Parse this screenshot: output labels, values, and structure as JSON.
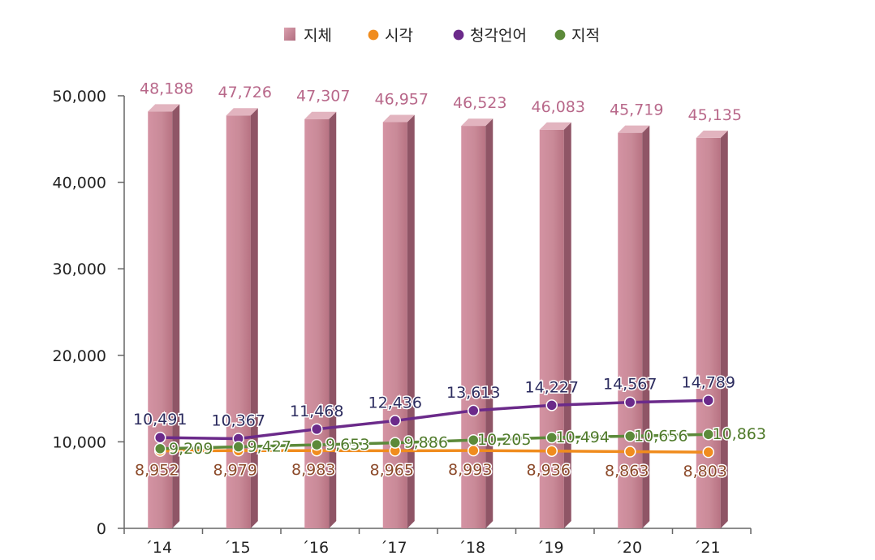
{
  "chart_data": {
    "type": "bar",
    "categories": [
      "´14",
      "´15",
      "´16",
      "´17",
      "´18",
      "´19",
      "´20",
      "´21"
    ],
    "ylim": [
      0,
      50000
    ],
    "yticks": [
      0,
      10000,
      20000,
      30000,
      40000,
      50000
    ],
    "ytick_labels": [
      "0",
      "10,000",
      "20,000",
      "30,000",
      "40,000",
      "50,000"
    ],
    "legend_position": "top-center",
    "bar_series": {
      "name": "지체",
      "color": "#c98a98",
      "values": [
        48188,
        47726,
        47307,
        46957,
        46523,
        46083,
        45719,
        45135
      ],
      "labels": [
        "48,188",
        "47,726",
        "47,307",
        "46,957",
        "46,523",
        "46,083",
        "45,719",
        "45,135"
      ],
      "label_color": "#b8688a"
    },
    "line_series": [
      {
        "name": "시각",
        "color": "#f08c1e",
        "label_color": "#8c4a2a",
        "values": [
          8952,
          8979,
          8983,
          8965,
          8993,
          8936,
          8863,
          8803
        ],
        "labels": [
          "8,952",
          "8,979",
          "8,983",
          "8,965",
          "8,993",
          "8,936",
          "8,863",
          "8,803"
        ]
      },
      {
        "name": "청각언어",
        "color": "#6b2a8a",
        "label_color": "#2b2b5e",
        "values": [
          10491,
          10367,
          11468,
          12436,
          13613,
          14227,
          14567,
          14789
        ],
        "labels": [
          "10,491",
          "10,367",
          "11,468",
          "12,436",
          "13,613",
          "14,227",
          "14,567",
          "14,789"
        ]
      },
      {
        "name": "지적",
        "color": "#5c8a3a",
        "label_color": "#4f7a2a",
        "values": [
          9209,
          9427,
          9653,
          9886,
          10205,
          10494,
          10656,
          10863
        ],
        "labels": [
          "9,209",
          "9,427",
          "9,653",
          "9,886",
          "10,205",
          "10,494",
          "10,656",
          "10,863"
        ]
      }
    ]
  }
}
